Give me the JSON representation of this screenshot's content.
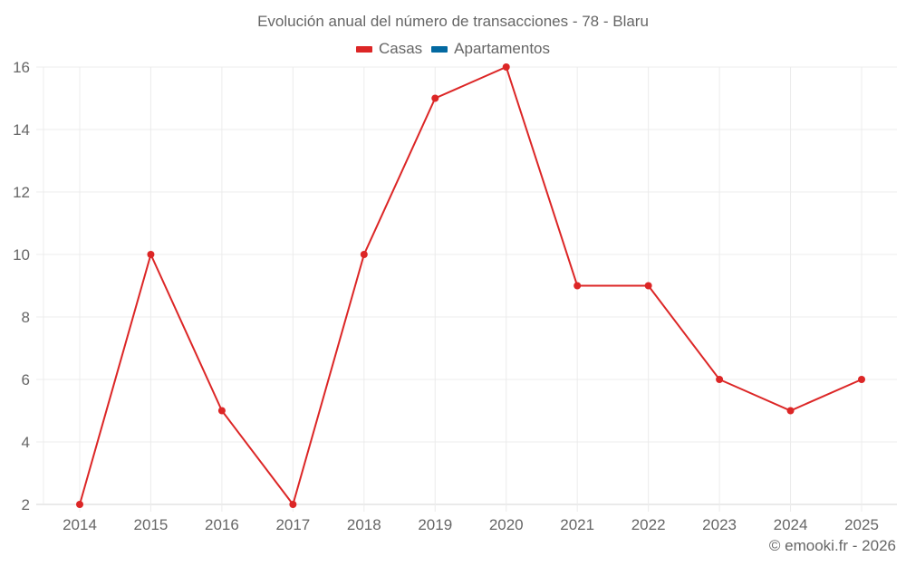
{
  "title": "Evolución anual del número de transacciones - 78 - Blaru",
  "legend": [
    {
      "label": "Casas",
      "color": "#dc2626"
    },
    {
      "label": "Apartamentos",
      "color": "#0369a1"
    }
  ],
  "credit": "© emooki.fr - 2026",
  "chart_data": {
    "type": "line",
    "title": "Evolución anual del número de transacciones - 78 - Blaru",
    "xlabel": "",
    "ylabel": "",
    "categories": [
      "2014",
      "2015",
      "2016",
      "2017",
      "2018",
      "2019",
      "2020",
      "2021",
      "2022",
      "2023",
      "2024",
      "2025"
    ],
    "series": [
      {
        "name": "Casas",
        "color": "#dc2626",
        "values": [
          2,
          10,
          5,
          2,
          10,
          15,
          16,
          9,
          9,
          6,
          5,
          6
        ]
      },
      {
        "name": "Apartamentos",
        "color": "#0369a1",
        "values": []
      }
    ],
    "yticks": [
      2,
      4,
      6,
      8,
      10,
      12,
      14,
      16
    ],
    "ylim": [
      2,
      16
    ],
    "grid": true,
    "legend_position": "top"
  }
}
